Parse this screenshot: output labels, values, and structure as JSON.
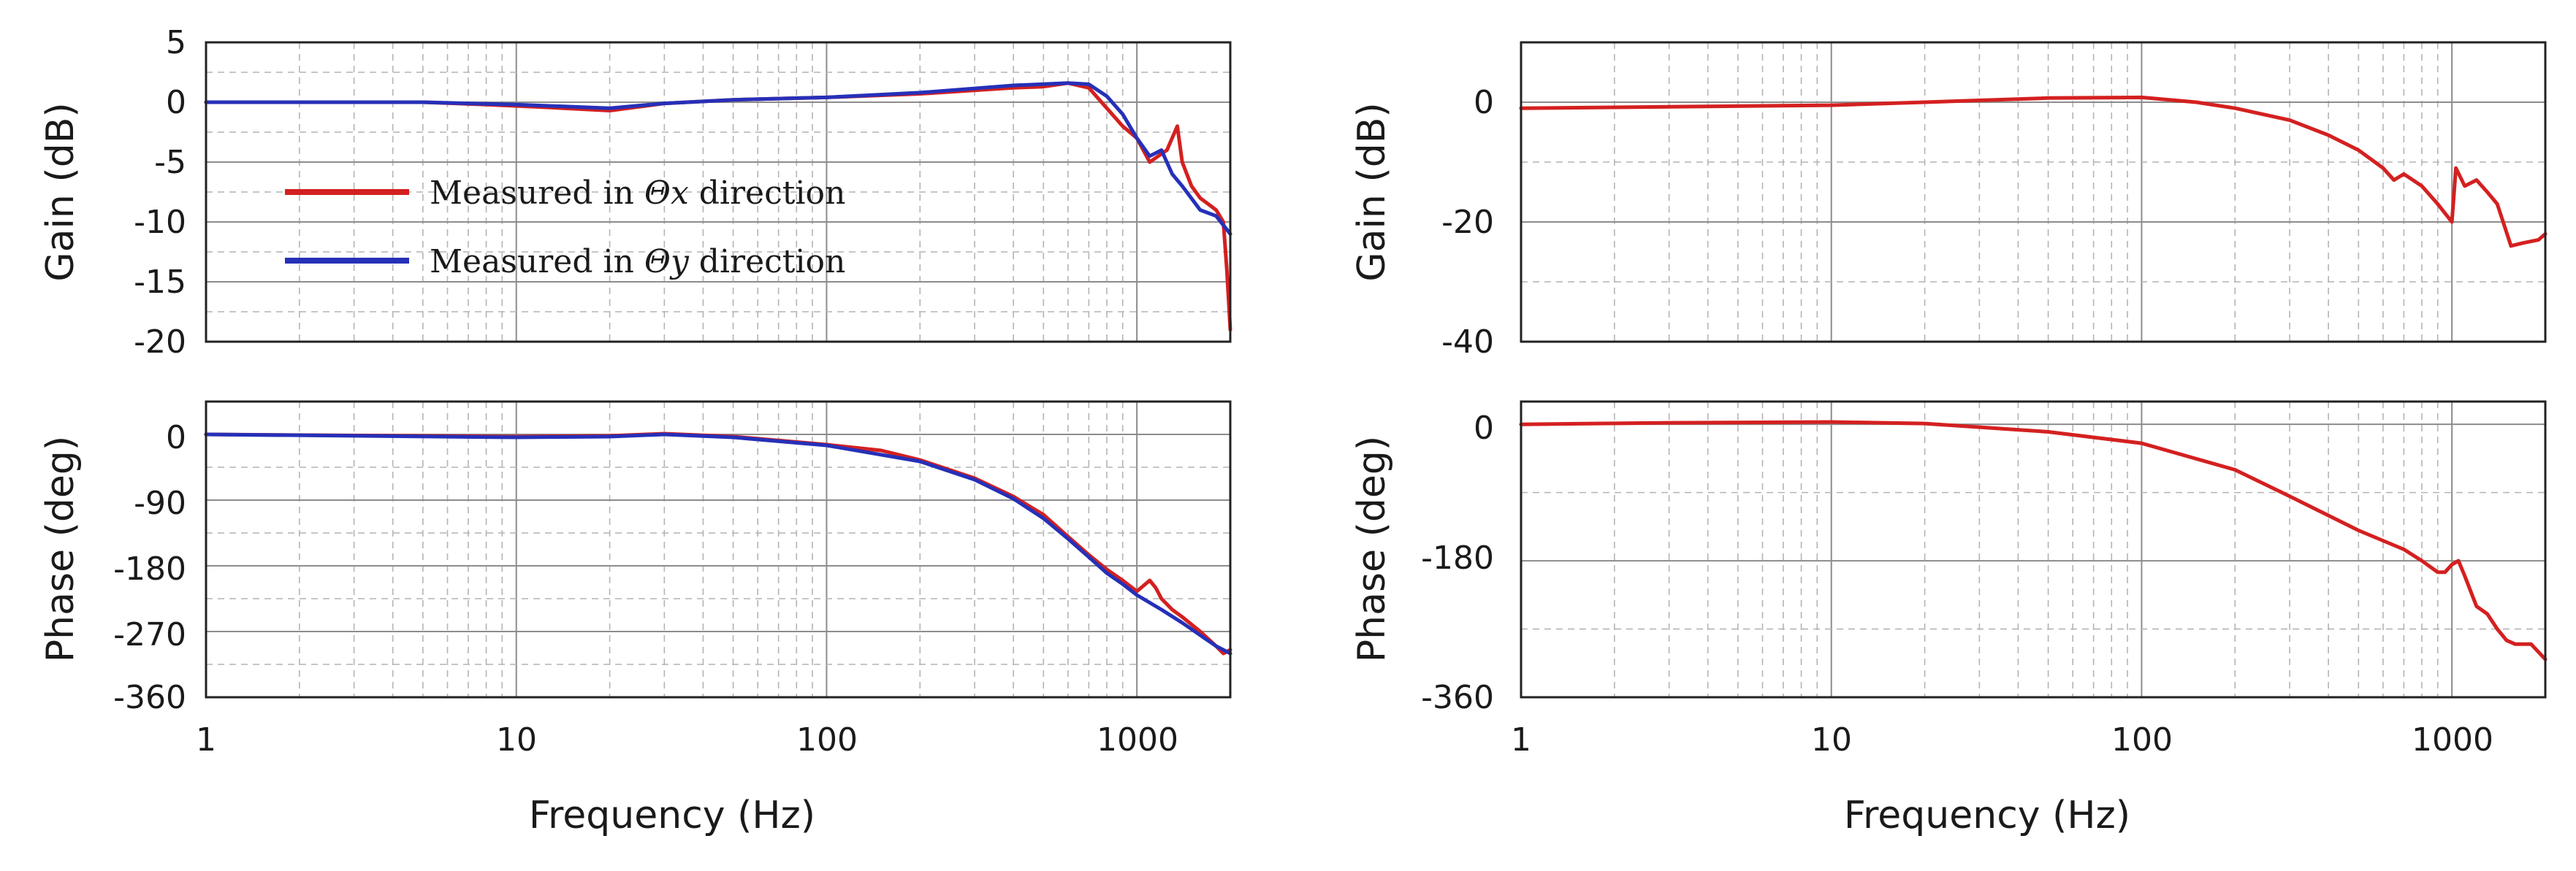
{
  "colors": {
    "red": "#d42020",
    "blue": "#2630b8"
  },
  "chart_data": [
    {
      "type": "line",
      "panel": "left-gain",
      "xscale": "log",
      "xlim": [
        1,
        2000
      ],
      "ylim": [
        -20,
        5
      ],
      "yticks": [
        5,
        0,
        -5,
        -10,
        -15,
        -20
      ],
      "ytick_labels": [
        "5",
        "0",
        "-5",
        "-10",
        "-15",
        "-20"
      ],
      "ylabel": "Gain (dB)",
      "xlabel": "",
      "legend": {
        "placement": "middle-left",
        "entries": [
          {
            "name": "Measured in Θx direction",
            "prefix": "Measured in ",
            "symbol": "Θx",
            "suffix": " direction",
            "color": "red"
          },
          {
            "name": "Measured in Θy direction",
            "prefix": "Measured in ",
            "symbol": "Θy",
            "suffix": " direction",
            "color": "blue"
          }
        ]
      },
      "series": [
        {
          "name": "Measured in Θx direction",
          "color": "red",
          "points": [
            [
              1,
              0
            ],
            [
              5,
              0
            ],
            [
              8,
              -0.2
            ],
            [
              12,
              -0.4
            ],
            [
              20,
              -0.7
            ],
            [
              30,
              -0.1
            ],
            [
              50,
              0.2
            ],
            [
              100,
              0.4
            ],
            [
              200,
              0.7
            ],
            [
              400,
              1.2
            ],
            [
              500,
              1.3
            ],
            [
              600,
              1.6
            ],
            [
              700,
              1.2
            ],
            [
              800,
              -0.5
            ],
            [
              900,
              -2
            ],
            [
              1000,
              -3
            ],
            [
              1100,
              -5
            ],
            [
              1250,
              -4
            ],
            [
              1350,
              -2
            ],
            [
              1400,
              -5
            ],
            [
              1500,
              -7
            ],
            [
              1600,
              -8
            ],
            [
              1800,
              -9
            ],
            [
              1900,
              -10
            ],
            [
              1950,
              -14
            ],
            [
              2000,
              -19
            ]
          ]
        },
        {
          "name": "Measured in Θy direction",
          "color": "blue",
          "points": [
            [
              1,
              0
            ],
            [
              5,
              0
            ],
            [
              10,
              -0.2
            ],
            [
              20,
              -0.5
            ],
            [
              30,
              -0.1
            ],
            [
              50,
              0.2
            ],
            [
              100,
              0.4
            ],
            [
              200,
              0.8
            ],
            [
              400,
              1.4
            ],
            [
              600,
              1.6
            ],
            [
              700,
              1.5
            ],
            [
              800,
              0.5
            ],
            [
              900,
              -1
            ],
            [
              1000,
              -3
            ],
            [
              1100,
              -4.5
            ],
            [
              1200,
              -4
            ],
            [
              1300,
              -6
            ],
            [
              1400,
              -7
            ],
            [
              1600,
              -9
            ],
            [
              1800,
              -9.5
            ],
            [
              2000,
              -11
            ]
          ]
        }
      ]
    },
    {
      "type": "line",
      "panel": "left-phase",
      "xscale": "log",
      "xlim": [
        1,
        2000
      ],
      "ylim": [
        -360,
        45
      ],
      "yticks": [
        0,
        -90,
        -180,
        -270,
        -360
      ],
      "ytick_labels": [
        "0",
        "-90",
        "-180",
        "-270",
        "-360"
      ],
      "xticks": [
        1,
        10,
        100,
        1000
      ],
      "xtick_labels": [
        "1",
        "10",
        "100",
        "1000"
      ],
      "ylabel": "Phase (deg)",
      "xlabel": "Frequency (Hz)",
      "series": [
        {
          "name": "Measured in Θx direction",
          "color": "red",
          "points": [
            [
              1,
              0
            ],
            [
              10,
              -3
            ],
            [
              20,
              -2
            ],
            [
              30,
              1
            ],
            [
              50,
              -3
            ],
            [
              100,
              -14
            ],
            [
              150,
              -22
            ],
            [
              200,
              -35
            ],
            [
              300,
              -60
            ],
            [
              400,
              -85
            ],
            [
              500,
              -110
            ],
            [
              600,
              -140
            ],
            [
              700,
              -165
            ],
            [
              800,
              -185
            ],
            [
              900,
              -200
            ],
            [
              1000,
              -215
            ],
            [
              1100,
              -200
            ],
            [
              1150,
              -210
            ],
            [
              1200,
              -225
            ],
            [
              1300,
              -240
            ],
            [
              1400,
              -250
            ],
            [
              1600,
              -270
            ],
            [
              1800,
              -290
            ],
            [
              1900,
              -300
            ],
            [
              2000,
              -295
            ]
          ]
        },
        {
          "name": "Measured in Θy direction",
          "color": "blue",
          "points": [
            [
              1,
              0
            ],
            [
              10,
              -4
            ],
            [
              20,
              -3
            ],
            [
              30,
              0
            ],
            [
              50,
              -4
            ],
            [
              100,
              -15
            ],
            [
              200,
              -37
            ],
            [
              300,
              -62
            ],
            [
              400,
              -88
            ],
            [
              500,
              -115
            ],
            [
              600,
              -143
            ],
            [
              700,
              -168
            ],
            [
              800,
              -190
            ],
            [
              900,
              -205
            ],
            [
              1000,
              -220
            ],
            [
              1200,
              -240
            ],
            [
              1400,
              -258
            ],
            [
              1600,
              -275
            ],
            [
              1800,
              -290
            ],
            [
              2000,
              -300
            ]
          ]
        }
      ]
    },
    {
      "type": "line",
      "panel": "right-gain",
      "xscale": "log",
      "xlim": [
        1,
        2000
      ],
      "ylim": [
        -40,
        10
      ],
      "yticks": [
        0,
        -20,
        -40
      ],
      "ytick_labels": [
        "0",
        "-20",
        "-40"
      ],
      "ylabel": "Gain (dB)",
      "xlabel": "",
      "series": [
        {
          "name": "",
          "color": "red",
          "points": [
            [
              1,
              -1
            ],
            [
              10,
              -0.5
            ],
            [
              20,
              0
            ],
            [
              50,
              0.7
            ],
            [
              100,
              0.8
            ],
            [
              150,
              0
            ],
            [
              200,
              -1
            ],
            [
              300,
              -3
            ],
            [
              400,
              -5.5
            ],
            [
              500,
              -8
            ],
            [
              600,
              -11
            ],
            [
              650,
              -13
            ],
            [
              700,
              -12
            ],
            [
              800,
              -14
            ],
            [
              900,
              -17
            ],
            [
              1000,
              -20
            ],
            [
              1030,
              -11
            ],
            [
              1100,
              -14
            ],
            [
              1200,
              -13
            ],
            [
              1300,
              -15
            ],
            [
              1400,
              -17
            ],
            [
              1550,
              -24
            ],
            [
              1700,
              -23.5
            ],
            [
              1900,
              -23
            ],
            [
              2000,
              -22
            ]
          ]
        }
      ]
    },
    {
      "type": "line",
      "panel": "right-phase",
      "xscale": "log",
      "xlim": [
        1,
        2000
      ],
      "ylim": [
        -360,
        30
      ],
      "yticks": [
        0,
        -180,
        -360
      ],
      "ytick_labels": [
        "0",
        "-180",
        "-360"
      ],
      "xticks": [
        1,
        10,
        100,
        1000
      ],
      "xtick_labels": [
        "1",
        "10",
        "100",
        "1000"
      ],
      "ylabel": "Phase (deg)",
      "xlabel": "Frequency (Hz)",
      "series": [
        {
          "name": "",
          "color": "red",
          "points": [
            [
              1,
              0
            ],
            [
              3,
              2
            ],
            [
              10,
              3
            ],
            [
              20,
              1
            ],
            [
              50,
              -10
            ],
            [
              100,
              -25
            ],
            [
              200,
              -60
            ],
            [
              300,
              -95
            ],
            [
              500,
              -140
            ],
            [
              700,
              -165
            ],
            [
              800,
              -180
            ],
            [
              900,
              -195
            ],
            [
              950,
              -195
            ],
            [
              1000,
              -185
            ],
            [
              1050,
              -180
            ],
            [
              1100,
              -200
            ],
            [
              1200,
              -240
            ],
            [
              1300,
              -250
            ],
            [
              1400,
              -270
            ],
            [
              1500,
              -285
            ],
            [
              1600,
              -290
            ],
            [
              1800,
              -290
            ],
            [
              2000,
              -310
            ]
          ]
        }
      ]
    }
  ]
}
